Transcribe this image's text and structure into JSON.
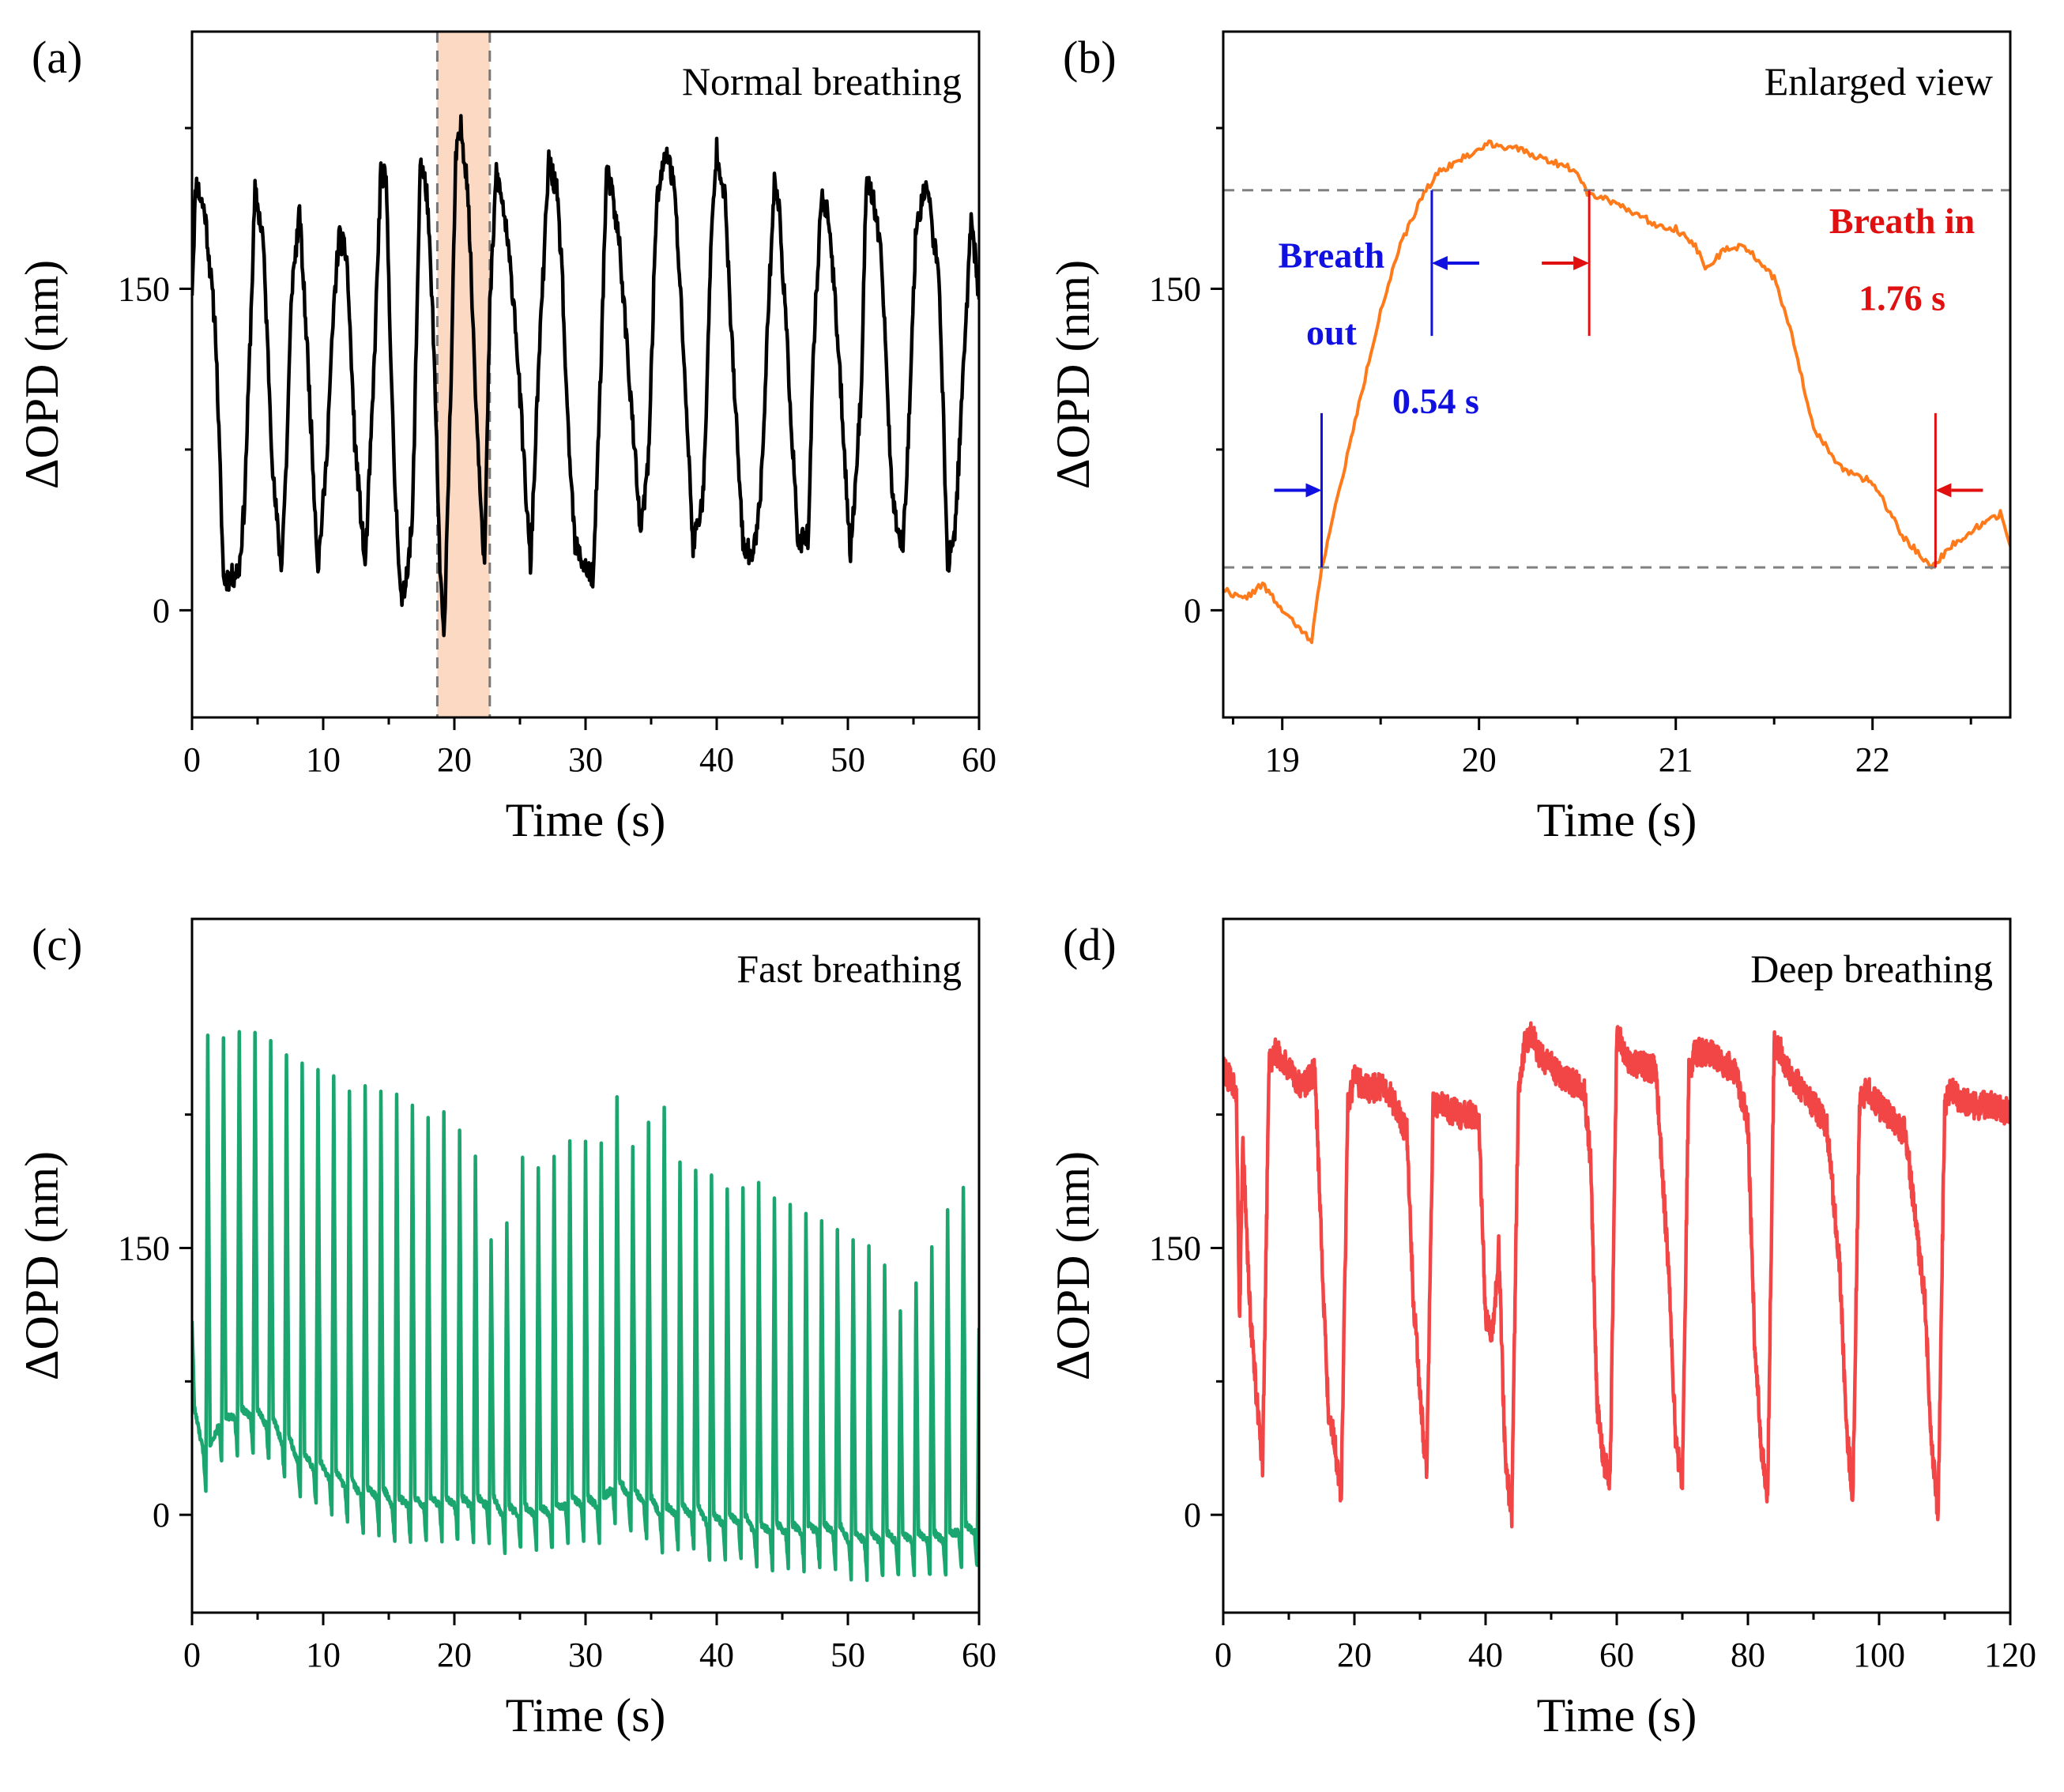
{
  "figure": {
    "panels": [
      {
        "id": "a",
        "label": "(a)",
        "title": "Normal breathing",
        "color": "#000000",
        "xlabel": "Time (s)",
        "ylabel": "ΔOPD (nm)",
        "xlim": [
          0,
          60
        ],
        "ylim": [
          -50,
          270
        ],
        "xticks": [
          0,
          10,
          20,
          30,
          40,
          50,
          60
        ],
        "yticks": [
          0,
          150
        ],
        "highlight": {
          "x0": 18.7,
          "x1": 22.7,
          "color": "#fbd9c2",
          "edge": "#777777"
        }
      },
      {
        "id": "b",
        "label": "(b)",
        "title": "Enlarged view",
        "color": "#ff7a1a",
        "xlabel": "Time (s)",
        "ylabel": "ΔOPD (nm)",
        "xlim": [
          18.7,
          22.7
        ],
        "ylim": [
          -50,
          270
        ],
        "xticks": [
          19,
          20,
          21,
          22
        ],
        "yticks": [
          0,
          150
        ],
        "annotations": {
          "out_label_1": "Breath",
          "out_label_2": "out",
          "out_time": "0.54 s",
          "in_label": "Breath in",
          "in_time": "1.76 s",
          "out_color": "#1010e0",
          "in_color": "#e01010"
        }
      },
      {
        "id": "c",
        "label": "(c)",
        "title": "Fast breathing",
        "color": "#1aa66e",
        "xlabel": "Time (s)",
        "ylabel": "ΔOPD (nm)",
        "xlim": [
          0,
          60
        ],
        "ylim": [
          -55,
          335
        ],
        "xticks": [
          0,
          10,
          20,
          30,
          40,
          50,
          60
        ],
        "yticks": [
          0,
          150
        ]
      },
      {
        "id": "d",
        "label": "(d)",
        "title": "Deep breathing",
        "color": "#f24545",
        "xlabel": "Time (s)",
        "ylabel": "ΔOPD (nm)",
        "xlim": [
          0,
          120
        ],
        "ylim": [
          -55,
          335
        ],
        "xticks": [
          0,
          20,
          40,
          60,
          80,
          100,
          120
        ],
        "yticks": [
          0,
          150
        ]
      }
    ]
  },
  "chart_data": [
    {
      "type": "line",
      "title": "Normal breathing",
      "xlabel": "Time (s)",
      "ylabel": "ΔOPD (nm)",
      "xlim": [
        0,
        60
      ],
      "ylim": [
        -50,
        270
      ],
      "series": [
        {
          "name": "Normal breathing",
          "x": [
            0,
            0.3,
            1.0,
            1.8,
            2.4,
            3.0,
            3.6,
            4.0,
            4.4,
            4.8,
            5.4,
            6.2,
            6.8,
            7.2,
            7.6,
            8.2,
            8.8,
            9.6,
            10.2,
            10.8,
            11.2,
            11.8,
            12.4,
            13.2,
            13.8,
            14.4,
            14.8,
            15.4,
            16.0,
            16.8,
            17.4,
            17.9,
            18.4,
            18.9,
            19.2,
            19.8,
            20.1,
            20.5,
            21.0,
            21.7,
            22.3,
            22.7,
            23.2,
            23.8,
            24.6,
            25.4,
            25.8,
            26.4,
            27.2,
            27.8,
            28.2,
            28.6,
            29.2,
            30.0,
            30.6,
            31.2,
            31.6,
            32.0,
            32.6,
            33.2,
            34.2,
            34.8,
            35.4,
            36.2,
            36.8,
            37.4,
            38.2,
            39.0,
            39.6,
            40.0,
            40.6,
            41.2,
            42.0,
            42.8,
            43.4,
            44.0,
            44.4,
            44.8,
            45.4,
            46.2,
            47.0,
            47.4,
            48.0,
            48.6,
            49.4,
            50.2,
            51.0,
            51.4,
            52.0,
            52.6,
            53.4,
            54.2,
            54.6,
            55.2,
            56.0,
            57.0,
            57.6,
            58.2,
            58.8,
            59.4,
            60.0
          ],
          "y": [
            150,
            200,
            185,
            130,
            15,
            15,
            20,
            50,
            120,
            195,
            175,
            60,
            20,
            70,
            150,
            185,
            120,
            20,
            65,
            140,
            175,
            165,
            80,
            20,
            100,
            205,
            200,
            65,
            0,
            40,
            210,
            195,
            130,
            20,
            -15,
            120,
            210,
            225,
            200,
            90,
            20,
            140,
            205,
            185,
            140,
            60,
            20,
            110,
            210,
            195,
            160,
            90,
            30,
            20,
            15,
            120,
            205,
            195,
            170,
            120,
            35,
            70,
            190,
            215,
            195,
            130,
            30,
            55,
            175,
            215,
            195,
            120,
            30,
            25,
            60,
            150,
            200,
            185,
            120,
            30,
            35,
            125,
            195,
            180,
            110,
            25,
            100,
            200,
            190,
            160,
            50,
            30,
            80,
            180,
            200,
            150,
            20,
            40,
            110,
            185,
            145
          ]
        }
      ]
    },
    {
      "type": "line",
      "title": "Enlarged view",
      "xlabel": "Time (s)",
      "ylabel": "ΔOPD (nm)",
      "xlim": [
        18.7,
        22.7
      ],
      "ylim": [
        -50,
        270
      ],
      "series": [
        {
          "name": "Enlarged view",
          "x": [
            18.7,
            18.8,
            18.9,
            19.0,
            19.1,
            19.15,
            19.2,
            19.35,
            19.5,
            19.6,
            19.72,
            19.8,
            19.9,
            20.0,
            20.05,
            20.2,
            20.35,
            20.5,
            20.55,
            20.7,
            20.9,
            21.0,
            21.1,
            21.15,
            21.25,
            21.35,
            21.5,
            21.6,
            21.7,
            21.85,
            22.0,
            22.15,
            22.3,
            22.4,
            22.55,
            22.65,
            22.7
          ],
          "y": [
            10,
            5,
            12,
            0,
            -10,
            -14,
            20,
            80,
            140,
            170,
            195,
            205,
            210,
            215,
            218,
            215,
            210,
            205,
            195,
            190,
            180,
            178,
            170,
            160,
            168,
            170,
            155,
            125,
            85,
            65,
            60,
            35,
            20,
            30,
            40,
            45,
            30
          ]
        }
      ],
      "annotations": [
        "Breath out",
        "0.54 s",
        "Breath in",
        "1.76 s"
      ],
      "reference_levels": [
        20,
        196
      ]
    },
    {
      "type": "line",
      "title": "Fast breathing",
      "xlabel": "Time (s)",
      "ylabel": "ΔOPD (nm)",
      "xlim": [
        0,
        60
      ],
      "ylim": [
        -55,
        335
      ],
      "series": [
        {
          "name": "Fast breathing",
          "period_s": 1.2,
          "peaks": [
            [
              0,
              110
            ],
            [
              1.2,
              270
            ],
            [
              2.4,
              270
            ],
            [
              3.6,
              270
            ],
            [
              4.8,
              270
            ],
            [
              6.0,
              265
            ],
            [
              7.2,
              260
            ],
            [
              8.4,
              255
            ],
            [
              9.6,
              250
            ],
            [
              10.8,
              245
            ],
            [
              12.0,
              240
            ],
            [
              13.2,
              240
            ],
            [
              14.4,
              238
            ],
            [
              15.6,
              235
            ],
            [
              16.8,
              230
            ],
            [
              18.0,
              225
            ],
            [
              19.2,
              225
            ],
            [
              20.4,
              215
            ],
            [
              21.6,
              200
            ],
            [
              22.8,
              155
            ],
            [
              24.0,
              165
            ],
            [
              25.2,
              200
            ],
            [
              26.4,
              195
            ],
            [
              27.6,
              200
            ],
            [
              28.8,
              210
            ],
            [
              30.0,
              210
            ],
            [
              31.2,
              210
            ],
            [
              32.4,
              235
            ],
            [
              33.6,
              205
            ],
            [
              34.8,
              220
            ],
            [
              36.0,
              230
            ],
            [
              37.2,
              200
            ],
            [
              38.4,
              195
            ],
            [
              39.6,
              190
            ],
            [
              40.8,
              185
            ],
            [
              42.0,
              185
            ],
            [
              43.2,
              185
            ],
            [
              44.4,
              180
            ],
            [
              45.6,
              175
            ],
            [
              46.8,
              170
            ],
            [
              48.0,
              165
            ],
            [
              49.2,
              160
            ],
            [
              50.4,
              155
            ],
            [
              51.6,
              150
            ],
            [
              52.8,
              140
            ],
            [
              54.0,
              115
            ],
            [
              55.2,
              130
            ],
            [
              56.4,
              150
            ],
            [
              57.6,
              170
            ],
            [
              58.8,
              185
            ],
            [
              60.0,
              105
            ]
          ],
          "troughs": [
            [
              0,
              35
            ],
            [
              1.2,
              15
            ],
            [
              2.4,
              30
            ],
            [
              3.6,
              35
            ],
            [
              4.8,
              35
            ],
            [
              6.0,
              30
            ],
            [
              7.2,
              20
            ],
            [
              8.4,
              10
            ],
            [
              9.6,
              5
            ],
            [
              10.8,
              0
            ],
            [
              12.0,
              -5
            ],
            [
              13.2,
              -10
            ],
            [
              14.4,
              -10
            ],
            [
              15.6,
              -15
            ],
            [
              16.8,
              -15
            ],
            [
              18.0,
              -15
            ],
            [
              19.2,
              -15
            ],
            [
              20.4,
              -15
            ],
            [
              21.6,
              -15
            ],
            [
              22.8,
              -15
            ],
            [
              24.0,
              -20
            ],
            [
              25.2,
              -20
            ],
            [
              26.4,
              -20
            ],
            [
              27.6,
              -20
            ],
            [
              28.8,
              -15
            ],
            [
              30.0,
              -15
            ],
            [
              31.2,
              -15
            ],
            [
              32.4,
              -5
            ],
            [
              33.6,
              -10
            ],
            [
              34.8,
              -15
            ],
            [
              36.0,
              -20
            ],
            [
              37.2,
              -20
            ],
            [
              38.4,
              -20
            ],
            [
              39.6,
              -25
            ],
            [
              40.8,
              -25
            ],
            [
              42.0,
              -25
            ],
            [
              43.2,
              -30
            ],
            [
              44.4,
              -30
            ],
            [
              45.6,
              -30
            ],
            [
              46.8,
              -30
            ],
            [
              48.0,
              -30
            ],
            [
              49.2,
              -30
            ],
            [
              50.4,
              -35
            ],
            [
              51.6,
              -35
            ],
            [
              52.8,
              -35
            ],
            [
              54.0,
              -35
            ],
            [
              55.2,
              -35
            ],
            [
              56.4,
              -35
            ],
            [
              57.6,
              -35
            ],
            [
              58.8,
              -30
            ],
            [
              60.0,
              -30
            ]
          ]
        }
      ]
    },
    {
      "type": "line",
      "title": "Deep breathing",
      "xlabel": "Time (s)",
      "ylabel": "ΔOPD (nm)",
      "xlim": [
        0,
        120
      ],
      "ylim": [
        -55,
        335
      ],
      "series": [
        {
          "name": "Deep breathing",
          "x": [
            0,
            2,
            2.5,
            3,
            4,
            5,
            6,
            7,
            8,
            12,
            14,
            15,
            16,
            17,
            18,
            19,
            20,
            22,
            25,
            28,
            29,
            30,
            31,
            32,
            33,
            36,
            38,
            39,
            40,
            41,
            42,
            43,
            44,
            45,
            46,
            47,
            48,
            52,
            55,
            56,
            57,
            58,
            59,
            60,
            62,
            66,
            68,
            69,
            70,
            71,
            72,
            74,
            78,
            80,
            81,
            82,
            83,
            84,
            85,
            86,
            88,
            92,
            94,
            95,
            96,
            97,
            98,
            99,
            100,
            104,
            107,
            108,
            109,
            110,
            111,
            112,
            114,
            118,
            120
          ],
          "y": [
            250,
            240,
            110,
            210,
            120,
            70,
            25,
            255,
            260,
            240,
            250,
            150,
            60,
            40,
            10,
            230,
            245,
            240,
            240,
            215,
            120,
            70,
            20,
            230,
            230,
            225,
            225,
            220,
            110,
            100,
            150,
            30,
            0,
            240,
            265,
            270,
            260,
            245,
            240,
            200,
            60,
            30,
            20,
            270,
            255,
            250,
            130,
            40,
            20,
            250,
            260,
            260,
            250,
            220,
            100,
            40,
            10,
            265,
            260,
            250,
            240,
            220,
            140,
            50,
            10,
            230,
            240,
            235,
            230,
            215,
            120,
            40,
            0,
            230,
            240,
            235,
            230,
            230,
            225
          ]
        }
      ]
    }
  ]
}
